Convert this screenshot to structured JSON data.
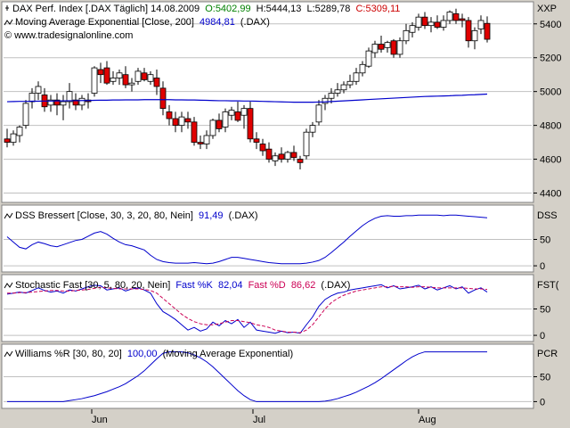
{
  "colors": {
    "background": "#d4d0c8",
    "panel": "#ffffff",
    "frame": "#808080",
    "grid": "#c0c0c0",
    "line": "#0000cc",
    "up_candle": "#ffffff",
    "down_candle": "#e00000",
    "candle_outline": "#000000",
    "open_green": "#008000",
    "close_red": "#cc0000",
    "fast_d": "#cc0055"
  },
  "x_axis": {
    "labels": [
      "Jun",
      "Jul",
      "Aug"
    ]
  },
  "chart_data": [
    {
      "type": "candlestick",
      "title_parts": {
        "title": "DAX Perf. Index [.DAX  Täglich] 14.08.2009",
        "open": "O:5402,99",
        "high": "H:5444,13",
        "low": "L:5289,78",
        "close": "C:5309,11"
      },
      "ma_label": "Moving Average Exponential [Close, 200]",
      "ma_value": "4984,81",
      "ma_suffix": "(.DAX)",
      "copyright": "© www.tradesignalonline.com",
      "axis_name": "XXP",
      "ylim": [
        4350,
        5520
      ],
      "yticks": [
        4400,
        4600,
        4800,
        5000,
        5200,
        5400
      ],
      "ytick_labels": [
        "4400",
        "4600",
        "4800",
        "5000",
        "5200",
        "5400"
      ],
      "candles": [
        {
          "o": 4720,
          "h": 4780,
          "l": 4670,
          "c": 4700
        },
        {
          "o": 4700,
          "h": 4770,
          "l": 4680,
          "c": 4750
        },
        {
          "o": 4740,
          "h": 4800,
          "l": 4700,
          "c": 4790
        },
        {
          "o": 4800,
          "h": 4950,
          "l": 4780,
          "c": 4930
        },
        {
          "o": 4940,
          "h": 5020,
          "l": 4900,
          "c": 4990
        },
        {
          "o": 4990,
          "h": 5060,
          "l": 4950,
          "c": 5030
        },
        {
          "o": 4980,
          "h": 5020,
          "l": 4880,
          "c": 4910
        },
        {
          "o": 4920,
          "h": 4980,
          "l": 4880,
          "c": 4950
        },
        {
          "o": 4950,
          "h": 4990,
          "l": 4860,
          "c": 4920
        },
        {
          "o": 4920,
          "h": 4980,
          "l": 4830,
          "c": 4940
        },
        {
          "o": 4940,
          "h": 5050,
          "l": 4900,
          "c": 5000
        },
        {
          "o": 4950,
          "h": 4990,
          "l": 4890,
          "c": 4920
        },
        {
          "o": 4920,
          "h": 4980,
          "l": 4890,
          "c": 4960
        },
        {
          "o": 4950,
          "h": 4990,
          "l": 4900,
          "c": 4940
        },
        {
          "o": 4990,
          "h": 5150,
          "l": 4970,
          "c": 5140
        },
        {
          "o": 5130,
          "h": 5170,
          "l": 5050,
          "c": 5100
        },
        {
          "o": 5140,
          "h": 5180,
          "l": 5040,
          "c": 5050
        },
        {
          "o": 5060,
          "h": 5120,
          "l": 5040,
          "c": 5080
        },
        {
          "o": 5080,
          "h": 5130,
          "l": 5040,
          "c": 5110
        },
        {
          "o": 5100,
          "h": 5150,
          "l": 5020,
          "c": 5040
        },
        {
          "o": 5040,
          "h": 5080,
          "l": 5000,
          "c": 5050
        },
        {
          "o": 5060,
          "h": 5140,
          "l": 5040,
          "c": 5120
        },
        {
          "o": 5110,
          "h": 5140,
          "l": 5060,
          "c": 5070
        },
        {
          "o": 5060,
          "h": 5120,
          "l": 5040,
          "c": 5100
        },
        {
          "o": 5080,
          "h": 5130,
          "l": 4980,
          "c": 5030
        },
        {
          "o": 5020,
          "h": 5060,
          "l": 4860,
          "c": 4900
        },
        {
          "o": 4880,
          "h": 4920,
          "l": 4800,
          "c": 4840
        },
        {
          "o": 4840,
          "h": 4880,
          "l": 4760,
          "c": 4800
        },
        {
          "o": 4800,
          "h": 4880,
          "l": 4760,
          "c": 4850
        },
        {
          "o": 4840,
          "h": 4880,
          "l": 4780,
          "c": 4820
        },
        {
          "o": 4820,
          "h": 4850,
          "l": 4680,
          "c": 4700
        },
        {
          "o": 4700,
          "h": 4740,
          "l": 4660,
          "c": 4690
        },
        {
          "o": 4690,
          "h": 4770,
          "l": 4660,
          "c": 4740
        },
        {
          "o": 4740,
          "h": 4840,
          "l": 4720,
          "c": 4830
        },
        {
          "o": 4830,
          "h": 4870,
          "l": 4760,
          "c": 4780
        },
        {
          "o": 4790,
          "h": 4900,
          "l": 4760,
          "c": 4880
        },
        {
          "o": 4860,
          "h": 4910,
          "l": 4830,
          "c": 4890
        },
        {
          "o": 4880,
          "h": 4940,
          "l": 4820,
          "c": 4830
        },
        {
          "o": 4860,
          "h": 4920,
          "l": 4780,
          "c": 4900
        },
        {
          "o": 4900,
          "h": 4940,
          "l": 4700,
          "c": 4720
        },
        {
          "o": 4720,
          "h": 4760,
          "l": 4660,
          "c": 4700
        },
        {
          "o": 4690,
          "h": 4720,
          "l": 4620,
          "c": 4650
        },
        {
          "o": 4660,
          "h": 4700,
          "l": 4580,
          "c": 4600
        },
        {
          "o": 4590,
          "h": 4640,
          "l": 4560,
          "c": 4620
        },
        {
          "o": 4630,
          "h": 4670,
          "l": 4580,
          "c": 4600
        },
        {
          "o": 4600,
          "h": 4650,
          "l": 4580,
          "c": 4640
        },
        {
          "o": 4640,
          "h": 4680,
          "l": 4590,
          "c": 4610
        },
        {
          "o": 4600,
          "h": 4620,
          "l": 4540,
          "c": 4580
        },
        {
          "o": 4620,
          "h": 4780,
          "l": 4600,
          "c": 4760
        },
        {
          "o": 4760,
          "h": 4820,
          "l": 4730,
          "c": 4800
        },
        {
          "o": 4820,
          "h": 4950,
          "l": 4800,
          "c": 4920
        },
        {
          "o": 4930,
          "h": 4980,
          "l": 4890,
          "c": 4960
        },
        {
          "o": 4960,
          "h": 5020,
          "l": 4930,
          "c": 4990
        },
        {
          "o": 4990,
          "h": 5050,
          "l": 4970,
          "c": 5010
        },
        {
          "o": 5010,
          "h": 5060,
          "l": 4990,
          "c": 5040
        },
        {
          "o": 5040,
          "h": 5100,
          "l": 5020,
          "c": 5060
        },
        {
          "o": 5060,
          "h": 5140,
          "l": 5040,
          "c": 5110
        },
        {
          "o": 5110,
          "h": 5180,
          "l": 5090,
          "c": 5160
        },
        {
          "o": 5150,
          "h": 5260,
          "l": 5140,
          "c": 5240
        },
        {
          "o": 5230,
          "h": 5300,
          "l": 5200,
          "c": 5280
        },
        {
          "o": 5280,
          "h": 5330,
          "l": 5230,
          "c": 5250
        },
        {
          "o": 5260,
          "h": 5300,
          "l": 5230,
          "c": 5290
        },
        {
          "o": 5300,
          "h": 5310,
          "l": 5200,
          "c": 5220
        },
        {
          "o": 5220,
          "h": 5320,
          "l": 5200,
          "c": 5300
        },
        {
          "o": 5300,
          "h": 5400,
          "l": 5280,
          "c": 5360
        },
        {
          "o": 5350,
          "h": 5410,
          "l": 5320,
          "c": 5390
        },
        {
          "o": 5380,
          "h": 5460,
          "l": 5360,
          "c": 5440
        },
        {
          "o": 5440,
          "h": 5470,
          "l": 5370,
          "c": 5390
        },
        {
          "o": 5390,
          "h": 5440,
          "l": 5350,
          "c": 5410
        },
        {
          "o": 5410,
          "h": 5450,
          "l": 5370,
          "c": 5380
        },
        {
          "o": 5380,
          "h": 5450,
          "l": 5360,
          "c": 5420
        },
        {
          "o": 5420,
          "h": 5480,
          "l": 5400,
          "c": 5470
        },
        {
          "o": 5460,
          "h": 5490,
          "l": 5400,
          "c": 5420
        },
        {
          "o": 5430,
          "h": 5460,
          "l": 5380,
          "c": 5420
        },
        {
          "o": 5420,
          "h": 5440,
          "l": 5260,
          "c": 5300
        },
        {
          "o": 5300,
          "h": 5380,
          "l": 5250,
          "c": 5360
        },
        {
          "o": 5370,
          "h": 5450,
          "l": 5340,
          "c": 5420
        },
        {
          "o": 5403,
          "h": 5444,
          "l": 5290,
          "c": 5309
        }
      ],
      "ma": [
        4940,
        4941,
        4942,
        4942,
        4943,
        4943,
        4944,
        4944,
        4945,
        4945,
        4946,
        4946,
        4947,
        4947,
        4948,
        4949,
        4949,
        4950,
        4950,
        4951,
        4951,
        4951,
        4952,
        4952,
        4952,
        4952,
        4952,
        4951,
        4951,
        4950,
        4950,
        4949,
        4948,
        4947,
        4946,
        4946,
        4945,
        4945,
        4944,
        4944,
        4943,
        4942,
        4941,
        4940,
        4939,
        4938,
        4937,
        4937,
        4937,
        4937,
        4938,
        4939,
        4941,
        4943,
        4945,
        4947,
        4949,
        4951,
        4953,
        4955,
        4957,
        4959,
        4961,
        4963,
        4965,
        4967,
        4969,
        4971,
        4972,
        4973,
        4974,
        4975,
        4977,
        4978,
        4980,
        4981,
        4983,
        4985
      ]
    },
    {
      "type": "line",
      "label": "DSS Bressert [Close, 30, 3, 20, 80, Nein]",
      "value": "91,49",
      "suffix": "(.DAX)",
      "axis_name": "DSS",
      "ylim": [
        -10,
        110
      ],
      "yticks": [
        0,
        50
      ],
      "ytick_labels": [
        "0",
        "50"
      ],
      "series": [
        {
          "values": [
            55,
            45,
            35,
            32,
            40,
            45,
            42,
            38,
            36,
            40,
            44,
            48,
            50,
            56,
            62,
            65,
            60,
            52,
            45,
            40,
            38,
            34,
            30,
            20,
            12,
            8,
            6,
            5,
            5,
            5,
            6,
            5,
            4,
            5,
            8,
            12,
            16,
            16,
            14,
            12,
            10,
            8,
            6,
            5,
            4,
            4,
            4,
            4,
            5,
            7,
            10,
            16,
            25,
            35,
            45,
            56,
            66,
            76,
            84,
            90,
            94,
            95,
            94,
            94,
            95,
            95,
            96,
            96,
            96,
            96,
            95,
            96,
            96,
            95,
            94,
            93,
            92,
            91
          ]
        }
      ]
    },
    {
      "type": "line",
      "label": "Stochastic Fast [30, 5, 80, 20, Nein]",
      "k_label": "Fast %K",
      "k_value": "82,04",
      "d_label": "Fast %D",
      "d_value": "86,62",
      "suffix": "(.DAX)",
      "axis_name": "FST(",
      "ylim": [
        -10,
        110
      ],
      "yticks": [
        0,
        50
      ],
      "ytick_labels": [
        "0",
        "50"
      ],
      "series": [
        {
          "name": "Fast %K",
          "values": [
            78,
            80,
            82,
            80,
            85,
            90,
            85,
            82,
            84,
            80,
            86,
            84,
            88,
            92,
            95,
            94,
            86,
            88,
            90,
            84,
            88,
            90,
            86,
            80,
            60,
            45,
            38,
            30,
            20,
            10,
            15,
            8,
            12,
            25,
            18,
            28,
            22,
            30,
            15,
            25,
            10,
            8,
            6,
            4,
            8,
            5,
            6,
            4,
            20,
            35,
            55,
            68,
            75,
            80,
            82,
            86,
            88,
            90,
            92,
            94,
            96,
            90,
            94,
            88,
            90,
            92,
            95,
            88,
            92,
            86,
            90,
            94,
            88,
            92,
            80,
            86,
            90,
            82
          ],
          "color": "#0000cc"
        },
        {
          "name": "Fast %D",
          "values": [
            80,
            80,
            81,
            81,
            82,
            83,
            84,
            85,
            85,
            84,
            84,
            85,
            86,
            87,
            89,
            91,
            90,
            89,
            88,
            88,
            88,
            88,
            87,
            85,
            80,
            70,
            60,
            50,
            40,
            32,
            26,
            22,
            20,
            20,
            22,
            25,
            28,
            28,
            26,
            24,
            20,
            18,
            15,
            10,
            8,
            6,
            6,
            5,
            10,
            20,
            35,
            50,
            62,
            70,
            76,
            80,
            84,
            86,
            88,
            90,
            92,
            92,
            93,
            92,
            92,
            91,
            92,
            92,
            91,
            90,
            90,
            90,
            90,
            90,
            89,
            88,
            88,
            87
          ],
          "color": "#cc0055",
          "dashed": true
        }
      ]
    },
    {
      "type": "line",
      "label": "Williams %R [30, 80, 20]",
      "value": "100,00",
      "suffix": "(Moving Average Exponential)",
      "axis_name": "PCR",
      "ylim": [
        -10,
        110
      ],
      "yticks": [
        0,
        50
      ],
      "ytick_labels": [
        "0",
        "50"
      ],
      "series": [
        {
          "values": [
            0,
            0,
            0,
            0,
            0,
            0,
            0,
            0,
            0,
            0,
            2,
            4,
            6,
            9,
            12,
            16,
            20,
            25,
            30,
            36,
            44,
            52,
            62,
            74,
            86,
            97,
            100,
            100,
            100,
            98,
            94,
            88,
            80,
            70,
            58,
            46,
            34,
            22,
            12,
            4,
            0,
            0,
            0,
            0,
            0,
            0,
            0,
            0,
            0,
            0,
            0,
            1,
            3,
            6,
            10,
            14,
            19,
            25,
            31,
            38,
            46,
            55,
            64,
            73,
            82,
            90,
            96,
            100,
            100,
            100,
            100,
            100,
            100,
            100,
            100,
            100,
            100,
            100
          ]
        }
      ]
    }
  ]
}
